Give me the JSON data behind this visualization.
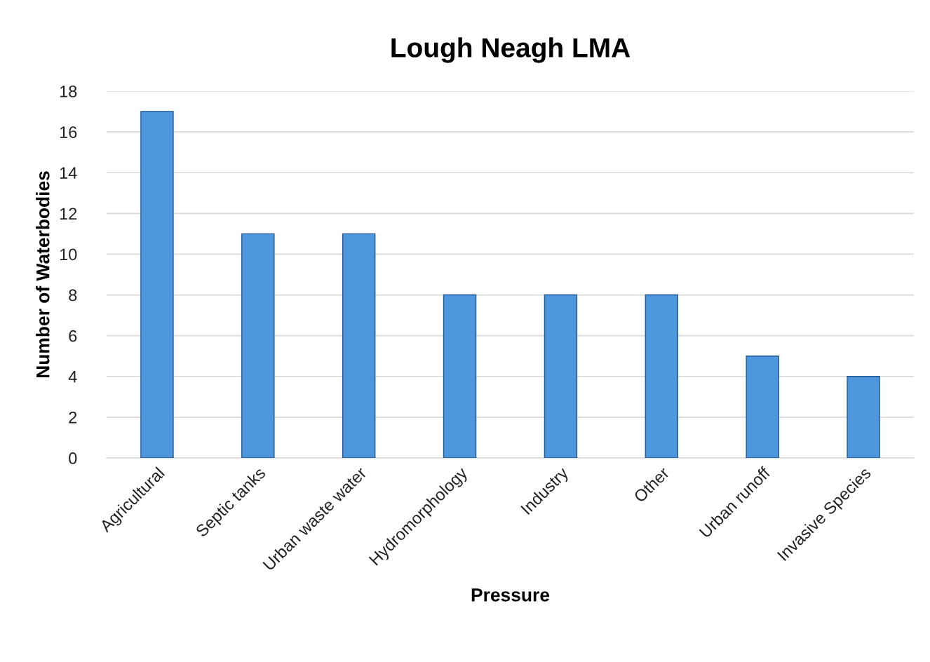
{
  "chart_data": {
    "type": "bar",
    "title": "Lough Neagh LMA",
    "xlabel": "Pressure",
    "ylabel": "Number of Waterbodies",
    "categories": [
      "Agricultural",
      "Septic tanks",
      "Urban waste water",
      "Hydromorphology",
      "Industry",
      "Other",
      "Urban runoff",
      "Invasive Species"
    ],
    "values": [
      17,
      11,
      11,
      8,
      8,
      8,
      5,
      4
    ],
    "color": "#4f97dc",
    "ylim": [
      0,
      18
    ],
    "yticks": [
      0,
      2,
      4,
      6,
      8,
      10,
      12,
      14,
      16,
      18
    ],
    "grid": "y",
    "legend": false
  }
}
